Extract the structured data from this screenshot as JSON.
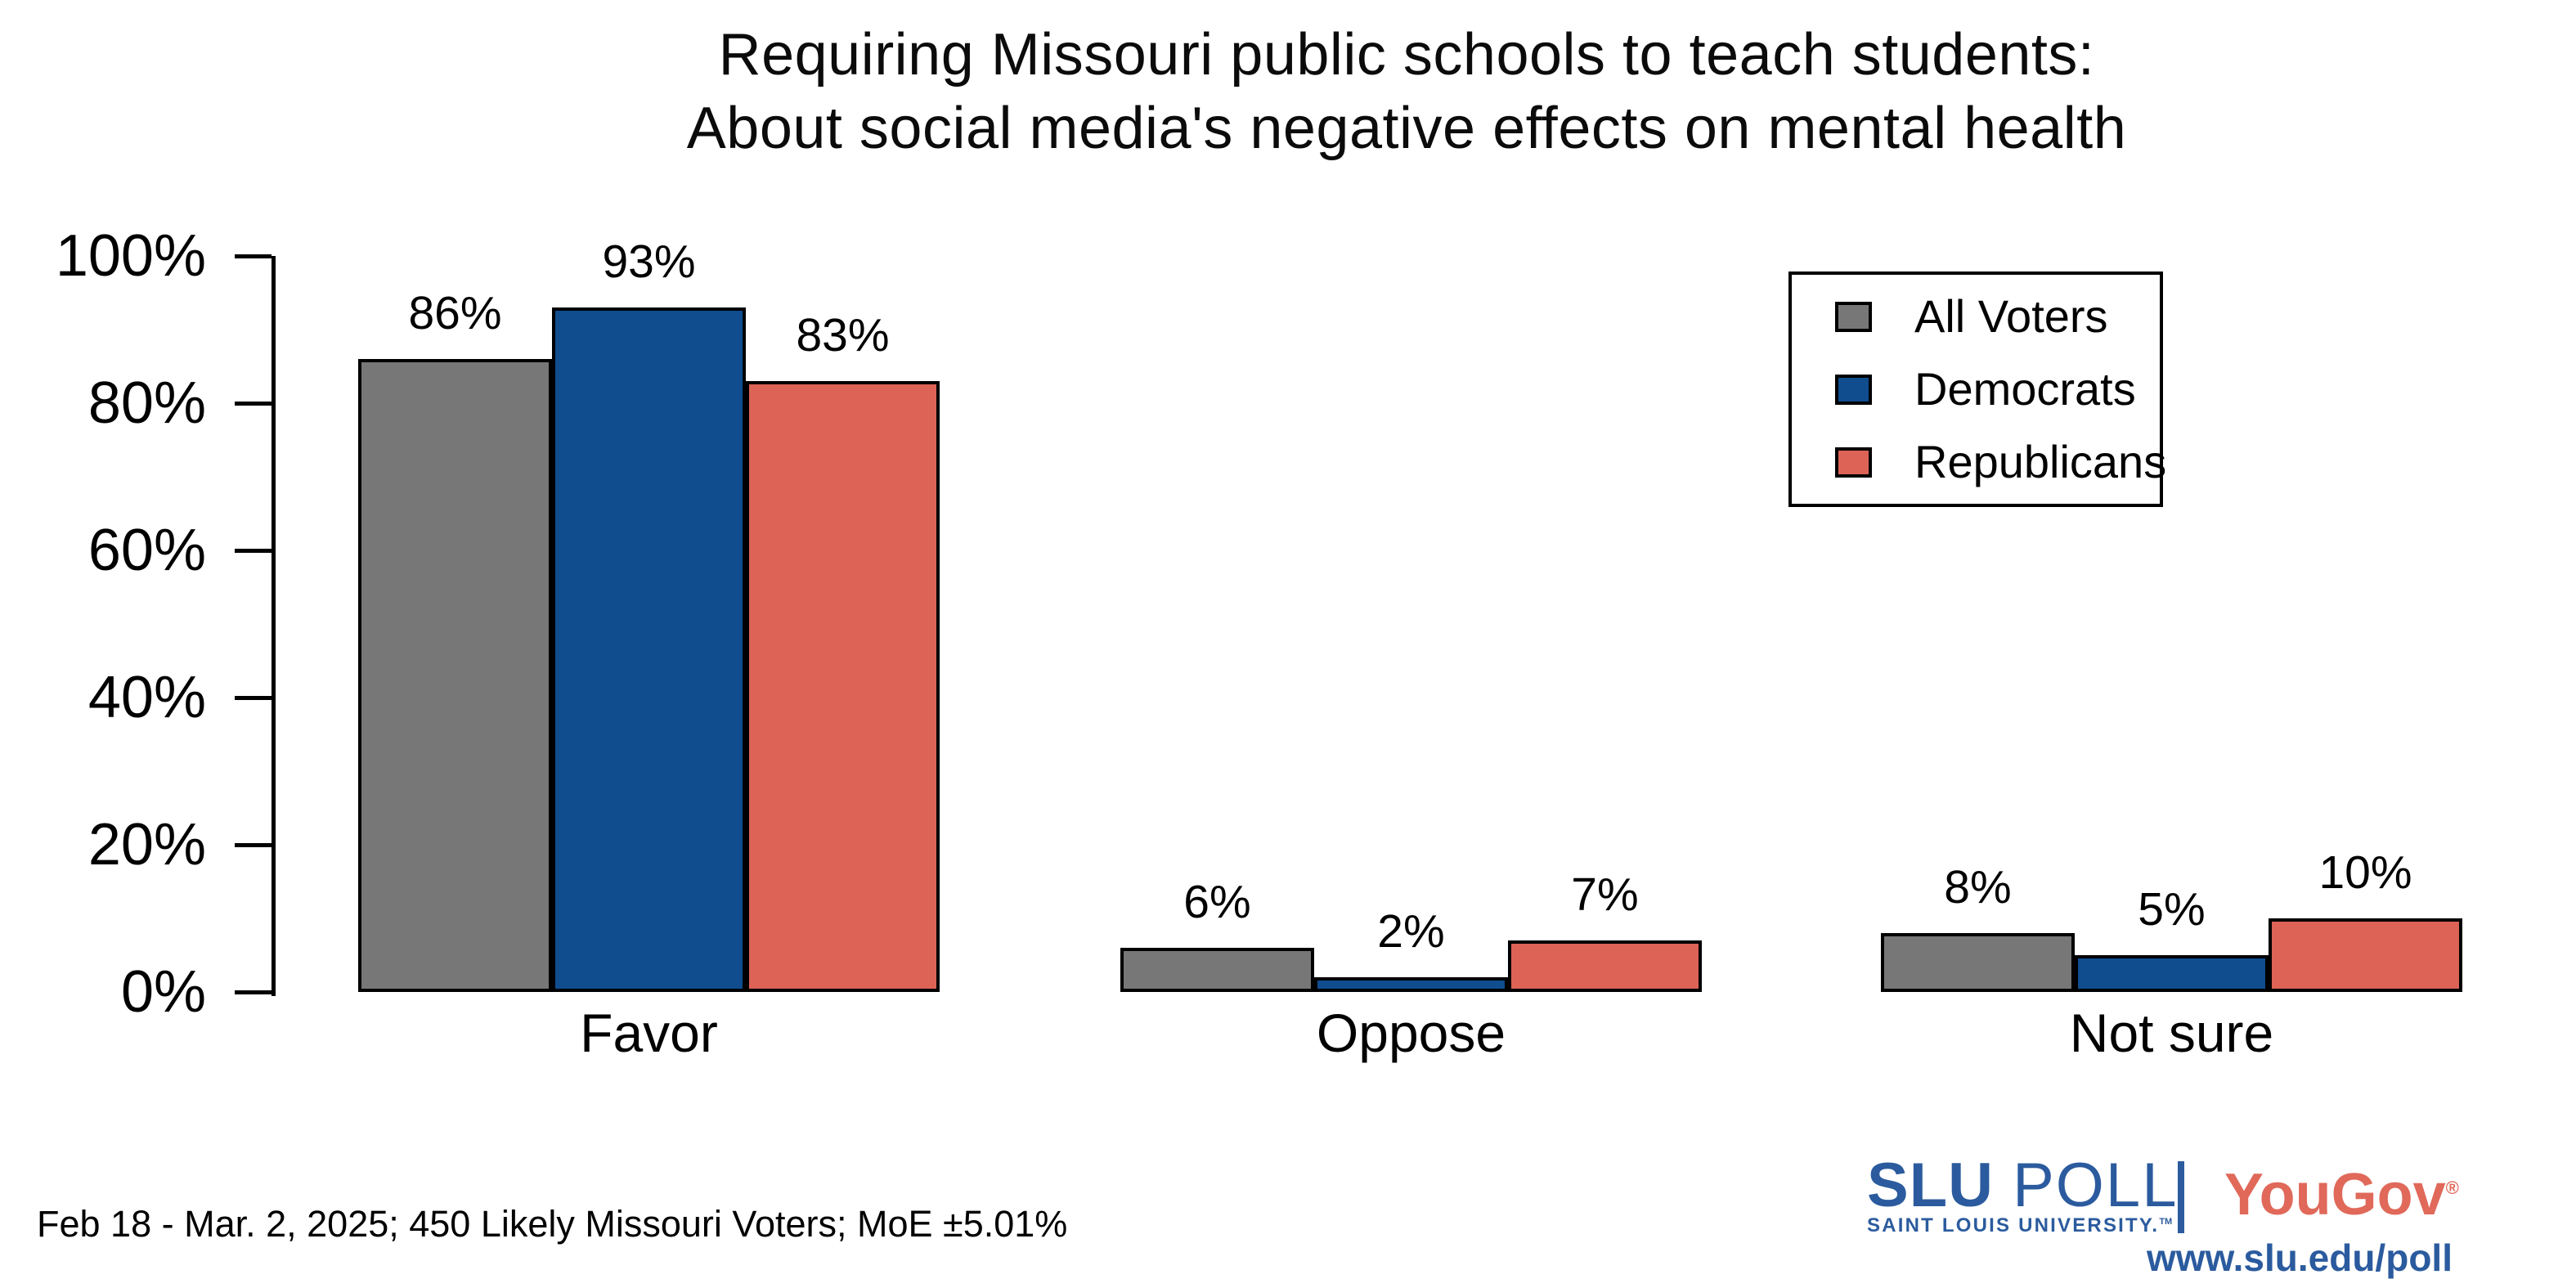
{
  "title": {
    "line1": "Requiring Missouri public schools to teach students:",
    "line2": "About social media's negative effects on mental health"
  },
  "chart_data": {
    "type": "bar",
    "categories": [
      "Favor",
      "Oppose",
      "Not sure"
    ],
    "series": [
      {
        "name": "All Voters",
        "color": "#777777",
        "values": [
          86,
          6,
          8
        ]
      },
      {
        "name": "Democrats",
        "color": "#0F4D8F",
        "values": [
          93,
          2,
          5
        ]
      },
      {
        "name": "Republicans",
        "color": "#DC6356",
        "values": [
          83,
          7,
          10
        ]
      }
    ],
    "value_suffix": "%",
    "data_labels": [
      [
        "86%",
        "6%",
        "8%"
      ],
      [
        "93%",
        "2%",
        "5%"
      ],
      [
        "83%",
        "7%",
        "10%"
      ]
    ],
    "ylim": [
      0,
      100
    ],
    "yticks": [
      {
        "label": "0%",
        "value": 0
      },
      {
        "label": "20%",
        "value": 20
      },
      {
        "label": "40%",
        "value": 40
      },
      {
        "label": "60%",
        "value": 60
      },
      {
        "label": "80%",
        "value": 80
      },
      {
        "label": "100%",
        "value": 100
      }
    ],
    "grid": false,
    "legend_position": "upper-right",
    "bar_border_color": "#000000",
    "axis_color": "#000000"
  },
  "footer": {
    "note": "Feb 18 - Mar. 2, 2025; 450 Likely Missouri Voters; MoE ±5.01%"
  },
  "branding": {
    "slu_bold": "SLU",
    "slu_rest": " POLL",
    "slu_subtitle": "SAINT LOUIS UNIVERSITY.",
    "slu_tm": "TM",
    "yougov": "YouGov",
    "yougov_reg": "®",
    "url": "www.slu.edu/poll",
    "slu_blue": "#2B5B9E",
    "yougov_red": "#E0695A"
  }
}
